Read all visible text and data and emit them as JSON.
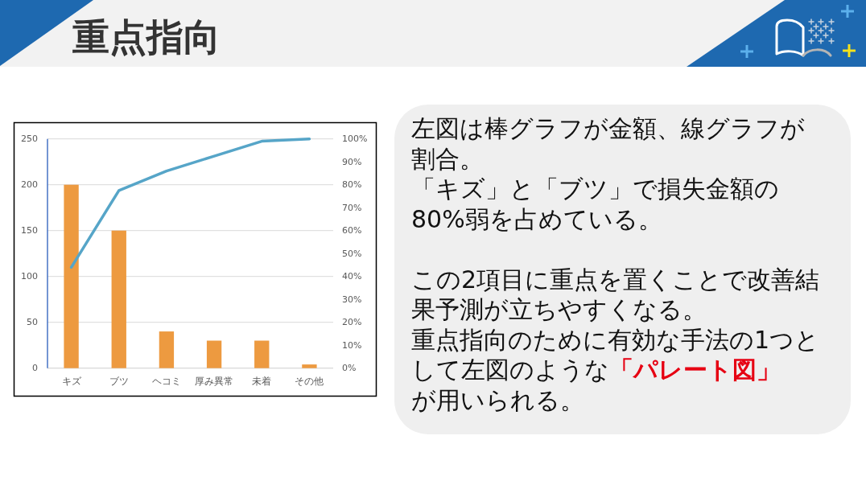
{
  "chart_data": {
    "type": "bar",
    "title": "重点指向",
    "categories": [
      "キズ",
      "ブツ",
      "ヘコミ",
      "厚み異常",
      "未着",
      "その他"
    ],
    "series": [
      {
        "color": "#ed9a40",
        "values": [
          200,
          150,
          40,
          30,
          30,
          4
        ]
      },
      {
        "type": "line",
        "axis": "y2",
        "color": "#56a5c8",
        "values": [
          44,
          77.5,
          86,
          92.5,
          99,
          100
        ]
      }
    ],
    "ylim": [
      0,
      250
    ],
    "yticks": [
      0,
      50,
      100,
      150,
      200,
      250
    ],
    "y2lim": [
      0,
      100
    ],
    "y2ticks": [
      {
        "value": 0,
        "label": "0%"
      },
      {
        "value": 10,
        "label": "10%"
      },
      {
        "value": 20,
        "label": "20%"
      },
      {
        "value": 30,
        "label": "30%"
      },
      {
        "value": 40,
        "label": "40%"
      },
      {
        "value": 50,
        "label": "50%"
      },
      {
        "value": 60,
        "label": "60%"
      },
      {
        "value": 70,
        "label": "70%"
      },
      {
        "value": 80,
        "label": "80%"
      },
      {
        "value": 90,
        "label": "90%"
      },
      {
        "value": 100,
        "label": "100%"
      }
    ],
    "grid": "y",
    "annotations": [
      "左図は棒グラフが金額、線グラフが割合。",
      "「キズ」と「ブツ」で損失金額の80%弱を占めている。",
      "この2項目に重点を置くことで改善結果予測が立ちやすくなる。",
      "重点指向のために有効な手法の1つとして左図のような",
      "「パレート図」",
      "が用いられる。"
    ]
  }
}
